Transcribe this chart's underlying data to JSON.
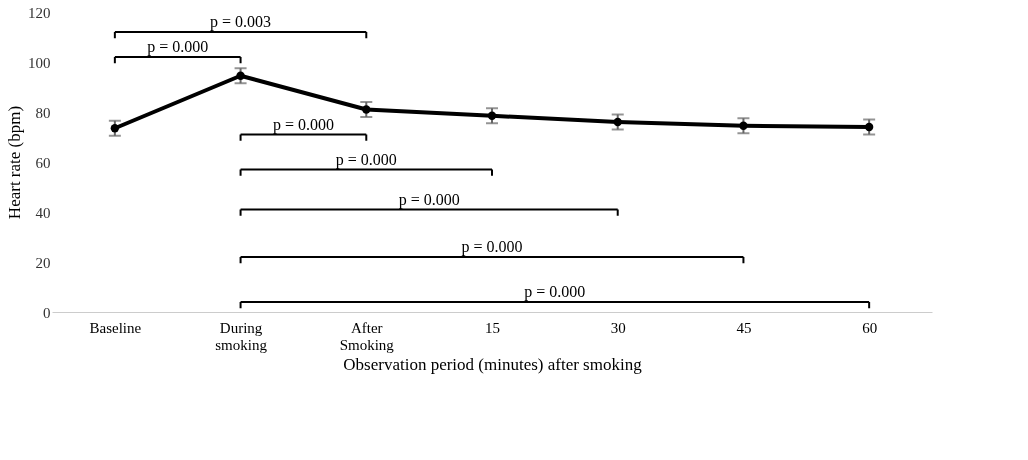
{
  "chart_data": {
    "type": "line",
    "xlabel": "Observation period (minutes) after smoking",
    "ylabel": "Heart rate (bpm)",
    "categories": [
      "Baseline",
      "During smoking",
      "After Smoking",
      "15",
      "30",
      "45",
      "60"
    ],
    "series": [
      {
        "color": "#000000",
        "values": [
          73.5,
          94.5,
          81,
          78.5,
          76,
          74.5,
          74
        ],
        "errors": [
          3,
          3,
          3,
          3,
          3,
          3,
          3
        ]
      }
    ],
    "ylim": [
      0,
      120
    ],
    "yticks": [
      0,
      20,
      40,
      60,
      80,
      100,
      120
    ],
    "grid": false,
    "marker": "circle",
    "line_style": "solid",
    "annotations": [
      "p = 0.003",
      "p = 0.000",
      "p = 0.000",
      "p = 0.000",
      "p = 0.000",
      "p = 0.000",
      "p = 0.000"
    ]
  }
}
